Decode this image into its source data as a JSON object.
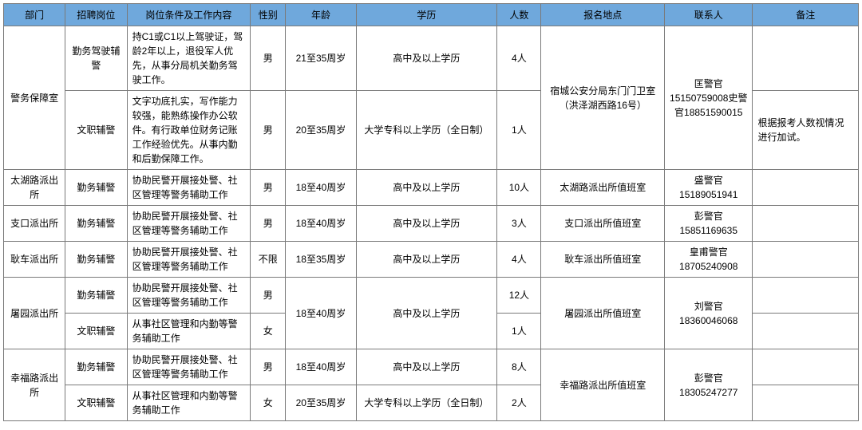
{
  "headers": {
    "dept": "部门",
    "position": "招聘岗位",
    "desc": "岗位条件及工作内容",
    "gender": "性别",
    "age": "年龄",
    "edu": "学历",
    "count": "人数",
    "location": "报名地点",
    "contact": "联系人",
    "note": "备注"
  },
  "rows": {
    "r1": {
      "dept": "警务保障室",
      "position": "勤务驾驶辅警",
      "desc": "持C1或C1以上驾驶证，驾龄2年以上，退役军人优先，从事分局机关勤务驾驶工作。",
      "gender": "男",
      "age": "21至35周岁",
      "edu": "高中及以上学历",
      "count": "4人",
      "location": "宿城公安分局东门门卫室（洪泽湖西路16号）",
      "contact": "匡警官15150759008史警官18851590015",
      "note": "根据报考人数视情况进行加试。"
    },
    "r2": {
      "position": "文职辅警",
      "desc": "文字功底扎实，写作能力较强，能熟练操作办公软件。有行政单位财务记账工作经验优先。从事内勤和后勤保障工作。",
      "gender": "男",
      "age": "20至35周岁",
      "edu": "大学专科以上学历（全日制）",
      "count": "1人"
    },
    "r3": {
      "dept": "太湖路派出所",
      "position": "勤务辅警",
      "desc": "协助民警开展接处警、社区管理等警务辅助工作",
      "gender": "男",
      "age": "18至40周岁",
      "edu": "高中及以上学历",
      "count": "10人",
      "location": "太湖路派出所值班室",
      "contact": "盛警官15189051941"
    },
    "r4": {
      "dept": "支口派出所",
      "position": "勤务辅警",
      "desc": "协助民警开展接处警、社区管理等警务辅助工作",
      "gender": "男",
      "age": "18至40周岁",
      "edu": "高中及以上学历",
      "count": "3人",
      "location": "支口派出所值班室",
      "contact": "彭警官15851169635"
    },
    "r5": {
      "dept": "耿车派出所",
      "position": "勤务辅警",
      "desc": "协助民警开展接处警、社区管理等警务辅助工作",
      "gender": "不限",
      "age": "18至35周岁",
      "edu": "高中及以上学历",
      "count": "4人",
      "location": "耿车派出所值班室",
      "contact": "皇甫警官18705240908"
    },
    "r6": {
      "dept": "屠园派出所",
      "position": "勤务辅警",
      "desc": "协助民警开展接处警、社区管理等警务辅助工作",
      "gender": "男",
      "age": "18至40周岁",
      "edu": "高中及以上学历",
      "count": "12人",
      "location": "屠园派出所值班室",
      "contact": "刘警官18360046068"
    },
    "r7": {
      "position": "文职辅警",
      "desc": "从事社区管理和内勤等警务辅助工作",
      "gender": "女",
      "count": "1人"
    },
    "r8": {
      "dept": "幸福路派出所",
      "position": "勤务辅警",
      "desc": "协助民警开展接处警、社区管理等警务辅助工作",
      "gender": "男",
      "age": "18至40周岁",
      "edu": "高中及以上学历",
      "count": "8人",
      "location": "幸福路派出所值班室",
      "contact": "彭警官18305247277"
    },
    "r9": {
      "position": "文职辅警",
      "desc": "从事社区管理和内勤等警务辅助工作",
      "gender": "女",
      "age": "20至35周岁",
      "edu": "大学专科以上学历（全日制）",
      "count": "2人"
    }
  },
  "style": {
    "header_bg": "#6fa8dc",
    "border_color": "#7a7a7a",
    "font_size": 12,
    "text_color": "#000000"
  }
}
